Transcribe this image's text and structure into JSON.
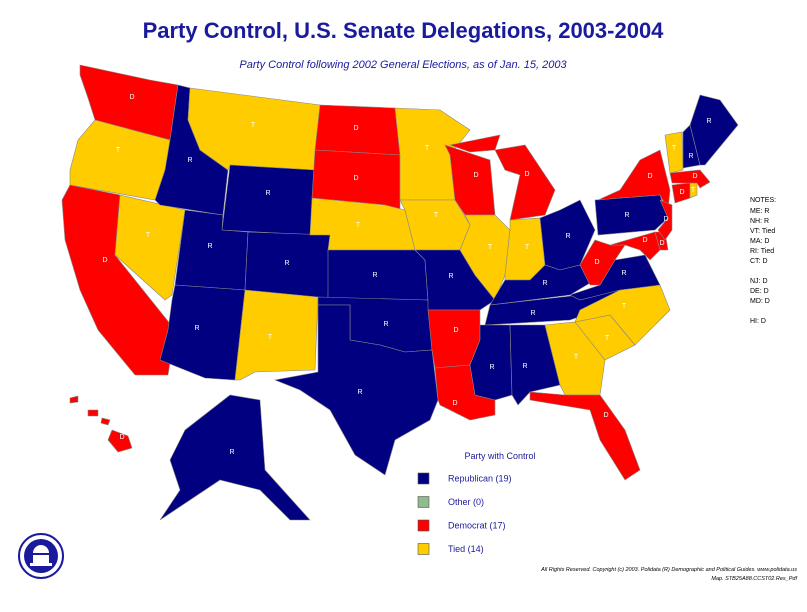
{
  "title": "Party Control, U.S. Senate Delegations, 2003-2004",
  "subtitle": "Party Control following 2002 General Elections, as of Jan. 15, 2003",
  "states": [
    {
      "label": "D",
      "color": "#ff0000"
    },
    {
      "label": "T",
      "color": "#ffcc00"
    },
    {
      "label": "D",
      "color": "#ff0000"
    },
    {
      "label": "T",
      "color": "#ffcc00"
    },
    {
      "label": "R",
      "color": "#000080"
    },
    {
      "label": "T",
      "color": "#ffcc00"
    },
    {
      "label": "R",
      "color": "#000080"
    },
    {
      "label": "R",
      "color": "#000080"
    },
    {
      "label": "R",
      "color": "#000080"
    },
    {
      "label": "R",
      "color": "#000080"
    },
    {
      "label": "T",
      "color": "#ffcc00"
    },
    {
      "label": "D",
      "color": "#ff0000"
    },
    {
      "label": "D",
      "color": "#ff0000"
    },
    {
      "label": "T",
      "color": "#ffcc00"
    },
    {
      "label": "R",
      "color": "#000080"
    },
    {
      "label": "R",
      "color": "#000080"
    },
    {
      "label": "R",
      "color": "#000080"
    },
    {
      "label": "T",
      "color": "#ffcc00"
    },
    {
      "label": "T",
      "color": "#ffcc00"
    },
    {
      "label": "R",
      "color": "#000080"
    },
    {
      "label": "D",
      "color": "#ff0000"
    },
    {
      "label": "D",
      "color": "#ff0000"
    },
    {
      "label": "D",
      "color": "#ff0000"
    },
    {
      "label": "T",
      "color": "#ffcc00"
    },
    {
      "label": "D",
      "color": "#ff0000"
    },
    {
      "label": "T",
      "color": "#ffcc00"
    },
    {
      "label": "R",
      "color": "#000080"
    },
    {
      "label": "R",
      "color": "#000080"
    },
    {
      "label": "R",
      "color": "#000080"
    },
    {
      "label": "R",
      "color": "#000080"
    },
    {
      "label": "R",
      "color": "#000080"
    },
    {
      "label": "T",
      "color": "#ffcc00"
    },
    {
      "label": "D",
      "color": "#ff0000"
    },
    {
      "label": "T",
      "color": "#ffcc00"
    },
    {
      "label": "T",
      "color": "#ffcc00"
    },
    {
      "label": "R",
      "color": "#000080"
    },
    {
      "label": "D",
      "color": "#ff0000"
    },
    {
      "label": "R",
      "color": "#000080"
    },
    {
      "label": "D",
      "color": "#ff0000"
    },
    {
      "label": "D",
      "color": "#ff0000"
    },
    {
      "label": "D",
      "color": "#ff0000"
    },
    {
      "label": "D",
      "color": "#ff0000"
    },
    {
      "label": "D",
      "color": "#ff0000"
    },
    {
      "label": "T",
      "color": "#ffcc00"
    },
    {
      "label": "D",
      "color": "#ff0000"
    },
    {
      "label": "T",
      "color": "#ffcc00"
    },
    {
      "label": "R",
      "color": "#000080"
    },
    {
      "label": "R",
      "color": "#000080"
    },
    {
      "label": "R",
      "color": "#000080"
    },
    {
      "label": "D",
      "color": "#ff0000"
    }
  ],
  "legend": {
    "title": "Party with Control",
    "items": [
      {
        "label": "Republican (19)",
        "color": "#000080"
      },
      {
        "label": "Other (0)",
        "color": "#8fbc8f"
      },
      {
        "label": "Democrat (17)",
        "color": "#ff0000"
      },
      {
        "label": "Tied (14)",
        "color": "#ffcc00"
      }
    ]
  },
  "notes": [
    "NOTES:",
    "ME: R",
    "NH: R",
    "VT: Tied",
    "MA: D",
    "RI: Tied",
    "CT: D",
    "NJ: D",
    "DE: D",
    "MD: D",
    "HI: D"
  ],
  "footer": [
    "All Rights Reserved. Copyright (c) 2003. Polidata (R) Demographic and Political Guides. www.polidata.us",
    "Map. STB25A88.CCST02.Res_Pdf"
  ]
}
